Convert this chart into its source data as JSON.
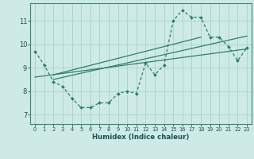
{
  "xlabel": "Humidex (Indice chaleur)",
  "bg_color": "#ceeae6",
  "line_color": "#2d7d6e",
  "grid_color": "#aed4ce",
  "xlim": [
    -0.5,
    23.5
  ],
  "ylim": [
    6.6,
    11.75
  ],
  "yticks": [
    7,
    8,
    9,
    10,
    11
  ],
  "xticks": [
    0,
    1,
    2,
    3,
    4,
    5,
    6,
    7,
    8,
    9,
    10,
    11,
    12,
    13,
    14,
    15,
    16,
    17,
    18,
    19,
    20,
    21,
    22,
    23
  ],
  "main_x": [
    0,
    1,
    2,
    3,
    4,
    5,
    6,
    7,
    8,
    9,
    10,
    11,
    12,
    13,
    14,
    15,
    16,
    17,
    18,
    19,
    20,
    21,
    22,
    23
  ],
  "main_y": [
    9.7,
    9.1,
    8.4,
    8.2,
    7.7,
    7.3,
    7.3,
    7.5,
    7.5,
    7.9,
    8.0,
    7.9,
    9.2,
    8.7,
    9.1,
    11.0,
    11.45,
    11.15,
    11.15,
    10.3,
    10.3,
    9.9,
    9.3,
    9.85
  ],
  "line1_x": [
    0,
    23
  ],
  "line1_y": [
    8.6,
    9.8
  ],
  "line2_x": [
    2,
    23
  ],
  "line2_y": [
    8.5,
    10.35
  ],
  "line3_x": [
    2,
    18
  ],
  "line3_y": [
    8.7,
    10.3
  ]
}
